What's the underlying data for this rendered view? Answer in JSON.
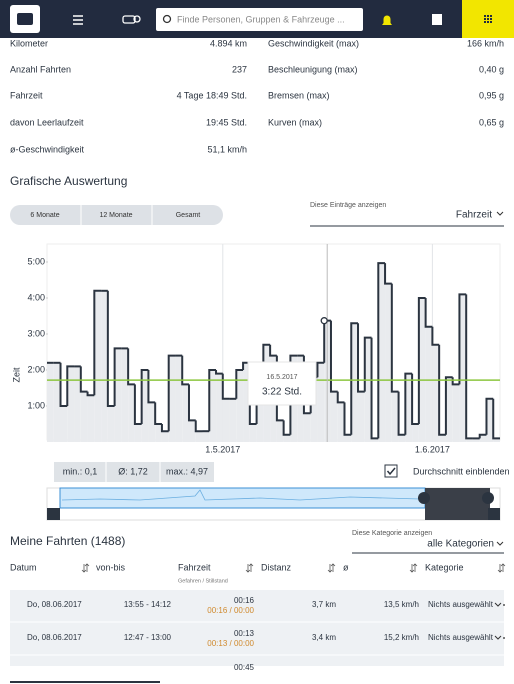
{
  "header": {
    "search_placeholder": "Finde Personen, Gruppen & Fahrzeuge ..."
  },
  "stats": {
    "left": [
      [
        "Kilometer",
        "4.894 km"
      ],
      [
        "Anzahl Fahrten",
        "237"
      ],
      [
        "Fahrzeit",
        "4 Tage 18:49 Std."
      ],
      [
        "davon Leerlaufzeit",
        "19:45 Std."
      ],
      [
        "ø-Geschwindigkeit",
        "51,1 km/h"
      ]
    ],
    "right": [
      [
        "Geschwindigkeit (max)",
        "166 km/h"
      ],
      [
        "Beschleunigung (max)",
        "0,40 g"
      ],
      [
        "Bremsen (max)",
        "0,95 g"
      ],
      [
        "Kurven (max)",
        "0,65 g"
      ]
    ]
  },
  "section_title": "Grafische Auswertung",
  "range_buttons": [
    "6 Monate",
    "12 Monate",
    "Gesamt"
  ],
  "entries_label": "Diese Einträge anzeigen",
  "entries_value": "Fahrzeit",
  "chart_data": {
    "type": "step",
    "y_label": "Zeit",
    "categories": [
      null,
      null,
      null,
      null,
      null,
      null,
      null,
      null,
      null,
      null,
      null,
      null,
      null,
      null,
      null,
      null,
      null,
      null,
      null,
      null,
      null,
      null,
      null,
      null,
      null,
      null,
      "1.5.2017",
      null,
      null,
      null,
      null,
      null,
      null,
      null,
      null,
      null,
      null,
      null,
      null,
      null,
      null,
      null,
      null,
      null,
      null,
      null,
      null,
      null,
      null,
      null,
      null,
      null,
      null,
      null,
      null,
      null,
      null,
      "1.6.2017",
      null,
      null,
      null,
      null,
      null,
      null,
      null,
      null,
      null
    ],
    "values": [
      2.2,
      2.2,
      1.0,
      2.1,
      2.1,
      1.4,
      1.3,
      4.2,
      4.2,
      1.0,
      2.6,
      2.6,
      1.6,
      0.5,
      2.0,
      1.1,
      0.5,
      0.3,
      2.4,
      2.4,
      1.6,
      0.6,
      0.3,
      0.3,
      2.0,
      1.9,
      1.2,
      1.2,
      2.0,
      2.2,
      0.5,
      1.2,
      2.7,
      2.4,
      0.6,
      0.2,
      2.4,
      2.4,
      0.8,
      1.8,
      2.2,
      3.37,
      1.4,
      1.1,
      0.2,
      3.3,
      1.4,
      2.9,
      0.1,
      4.97,
      4.4,
      1.4,
      0.2,
      1.9,
      0.5,
      4.0,
      3.2,
      2.7,
      0.2,
      1.8,
      1.6,
      4.1,
      0.1,
      0.1,
      0.2,
      1.2,
      0.1
    ],
    "color": "#2b3440",
    "fill": "#e9ebee",
    "ylim": [
      0,
      5.5
    ],
    "yticks": [
      {
        "value": 1,
        "label": "1:00"
      },
      {
        "value": 2,
        "label": "2:00"
      },
      {
        "value": 3,
        "label": "3:00"
      },
      {
        "value": 4,
        "label": "4:00"
      },
      {
        "value": 5,
        "label": "5:00"
      }
    ],
    "grid": "x",
    "average": 1.72,
    "average_color": "#8cc63f",
    "tooltip": {
      "index": 41,
      "date": "16.5.2017",
      "text": "3:22 Std."
    }
  },
  "chips": [
    "min.: 0,1",
    "Ø: 1,72",
    "max.: 4,97"
  ],
  "average_toggle": "Durchschnitt einblenden",
  "trips": {
    "title": "Meine Fahrten (1488)",
    "category_label": "Diese Kategorie anzeigen",
    "category_value": "alle Kategorien",
    "columns": [
      "Datum",
      "von-bis",
      "Fahrzeit",
      "Distanz",
      "ø",
      "Kategorie"
    ],
    "fahrzeit_sub": "Gefahren / Stillstand",
    "rows": [
      [
        "Do, 08.06.2017",
        "13:55 - 14:12",
        "00:16",
        "00:16 / 00:00",
        "3,7 km",
        "13,5 km/h",
        "Nichts ausgewählt"
      ],
      [
        "Do, 08.06.2017",
        "12:47 - 13:00",
        "00:13",
        "00:13 / 00:00",
        "3,4 km",
        "15,2 km/h",
        "Nichts ausgewählt"
      ]
    ],
    "partial_row": "00:45"
  }
}
